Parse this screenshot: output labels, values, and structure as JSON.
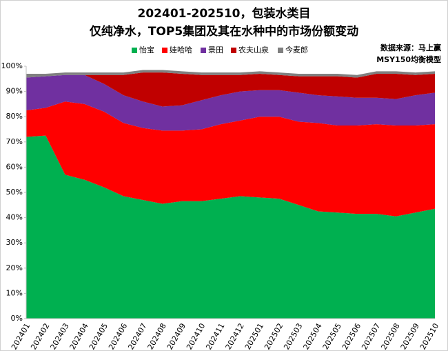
{
  "chart_data": {
    "type": "stacked_area",
    "title": "202401-202510，包装水类目",
    "subtitle": "仅纯净水，TOP5集团及其在水种中的市场份额变动",
    "annotations": [
      "数据来源：马上赢",
      "MSY150均衡模型"
    ],
    "categories": [
      "202401",
      "202402",
      "202403",
      "202404",
      "202405",
      "202406",
      "202407",
      "202408",
      "202409",
      "202410",
      "202411",
      "202412",
      "202501",
      "202502",
      "202503",
      "202504",
      "202505",
      "202506",
      "202507",
      "202508",
      "202509",
      "202510"
    ],
    "series": [
      {
        "name": "怡宝",
        "color": "#00b050",
        "values": [
          72,
          72.5,
          57,
          55,
          52,
          48.5,
          47,
          45.5,
          46.5,
          46.5,
          47.5,
          48.5,
          48,
          47.5,
          45,
          42.5,
          42,
          41.5,
          41.5,
          40.5,
          42,
          43.5
        ]
      },
      {
        "name": "娃哈哈",
        "color": "#ff0000",
        "values": [
          10.5,
          11,
          29,
          30,
          30,
          29,
          28.5,
          29,
          28,
          28.5,
          29.5,
          30,
          32,
          32.5,
          33,
          35,
          34.5,
          35,
          35.5,
          36,
          34.5,
          33.5
        ]
      },
      {
        "name": "景田",
        "color": "#7030a0",
        "values": [
          13,
          12.5,
          10.5,
          11.5,
          11,
          11,
          10.5,
          9.5,
          10,
          11.5,
          11.5,
          11.5,
          10.5,
          10.5,
          11.5,
          11,
          11.5,
          11,
          10.5,
          10.5,
          12,
          12.5
        ]
      },
      {
        "name": "农夫山泉",
        "color": "#c00000",
        "values": [
          0,
          0,
          0,
          0,
          3.5,
          8,
          11.5,
          13.5,
          12.5,
          10,
          8,
          6.5,
          6.5,
          6,
          6.5,
          7.5,
          8,
          8,
          9.5,
          10,
          8,
          7.5
        ]
      },
      {
        "name": "今麦郎",
        "color": "#808080",
        "values": [
          1.5,
          1,
          1,
          1,
          1,
          1,
          1,
          1,
          1,
          1,
          1,
          1,
          1,
          1,
          1,
          1,
          1,
          1,
          1,
          1,
          1,
          1
        ]
      }
    ],
    "ylim": [
      0,
      100
    ],
    "yticks": [
      {
        "value": 0,
        "label": "0%"
      },
      {
        "value": 10,
        "label": "10%"
      },
      {
        "value": 20,
        "label": "20%"
      },
      {
        "value": 30,
        "label": "30%"
      },
      {
        "value": 40,
        "label": "40%"
      },
      {
        "value": 50,
        "label": "50%"
      },
      {
        "value": 60,
        "label": "60%"
      },
      {
        "value": 70,
        "label": "70%"
      },
      {
        "value": 80,
        "label": "80%"
      },
      {
        "value": 90,
        "label": "90%"
      },
      {
        "value": 100,
        "label": "100%"
      }
    ],
    "grid": false,
    "legend": "top"
  }
}
